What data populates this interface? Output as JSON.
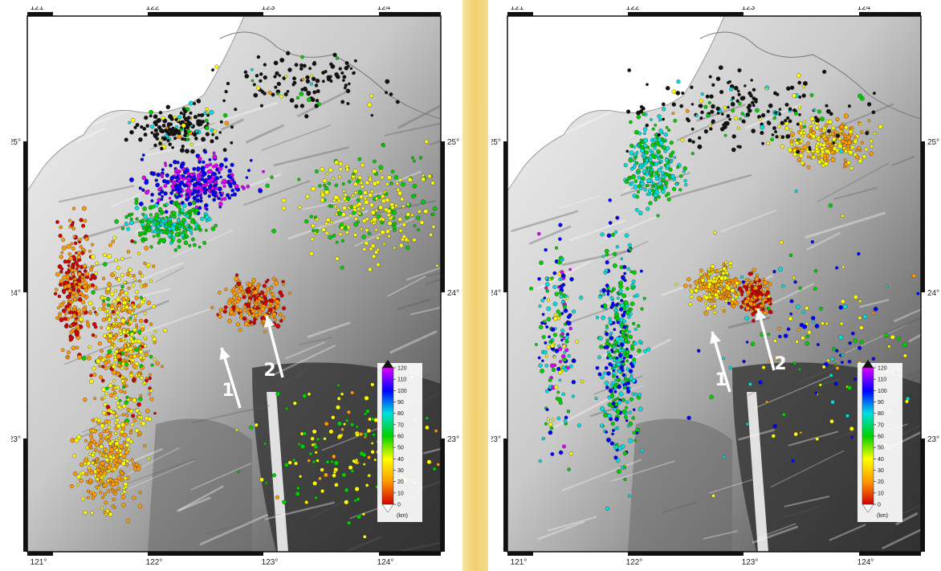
{
  "panels": [
    {
      "id": "left",
      "lon_ticks": [
        "121°",
        "122°",
        "123°",
        "124°"
      ],
      "lat_ticks": [
        "25°",
        "24°",
        "23°"
      ],
      "arrows": [
        "1",
        "2"
      ],
      "colorbar": {
        "ticks": [
          "0",
          "10",
          "20",
          "30",
          "40",
          "50",
          "60",
          "70",
          "80",
          "90",
          "100",
          "110",
          "120"
        ],
        "unit": "(km)"
      }
    },
    {
      "id": "right",
      "lon_ticks": [
        "121°",
        "122°",
        "123°",
        "124°"
      ],
      "lat_ticks": [
        "25°",
        "24°",
        "23°"
      ],
      "arrows": [
        "1",
        "2"
      ],
      "colorbar": {
        "ticks": [
          "0",
          "10",
          "20",
          "30",
          "40",
          "50",
          "60",
          "70",
          "80",
          "90",
          "100",
          "110",
          "120"
        ],
        "unit": "(km)"
      }
    }
  ],
  "colors": {
    "depth_scale": [
      "#ffffff",
      "#d20000",
      "#ff9a00",
      "#ffff00",
      "#00d000",
      "#00e0e0",
      "#0000ff",
      "#e000ff",
      "#000000"
    ],
    "frame": "#111111",
    "arrow": "#ffffff"
  }
}
